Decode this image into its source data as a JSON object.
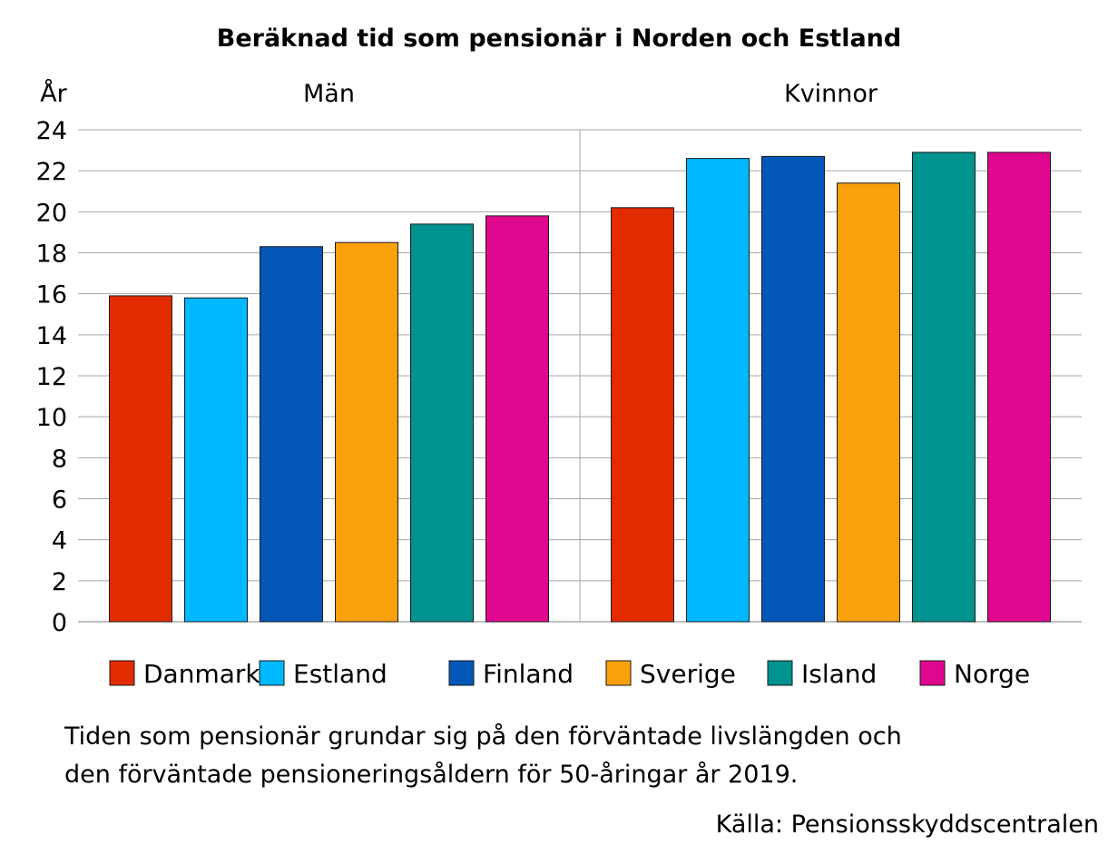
{
  "chart_data": {
    "type": "bar",
    "title": "Beräknad tid som pensionär i Norden och Estland",
    "ylabel": "År",
    "ylim": [
      0,
      24
    ],
    "yticks": [
      0,
      2,
      4,
      6,
      8,
      10,
      12,
      14,
      16,
      18,
      20,
      22,
      24
    ],
    "grid": true,
    "legend_position": "bottom",
    "categories": [
      "Män",
      "Kvinnor"
    ],
    "series": [
      {
        "name": "Danmark",
        "color": "#E32B00",
        "values": [
          15.9,
          20.2
        ]
      },
      {
        "name": "Estland",
        "color": "#00B8FF",
        "values": [
          15.8,
          22.6
        ]
      },
      {
        "name": "Finland",
        "color": "#0357B8",
        "values": [
          18.3,
          22.7
        ]
      },
      {
        "name": "Sverige",
        "color": "#F9A00B",
        "values": [
          18.5,
          21.4
        ]
      },
      {
        "name": "Island",
        "color": "#00928E",
        "values": [
          19.4,
          22.9
        ]
      },
      {
        "name": "Norge",
        "color": "#E0078F",
        "values": [
          19.8,
          22.9
        ]
      }
    ]
  },
  "footnote": {
    "line1": "Tiden som pensionär grundar sig på den förväntade livslängden och",
    "line2": "den förväntade pensioneringsåldern för 50-åringar år 2019.",
    "source": "Källa: Pensionsskyddscentralen"
  }
}
